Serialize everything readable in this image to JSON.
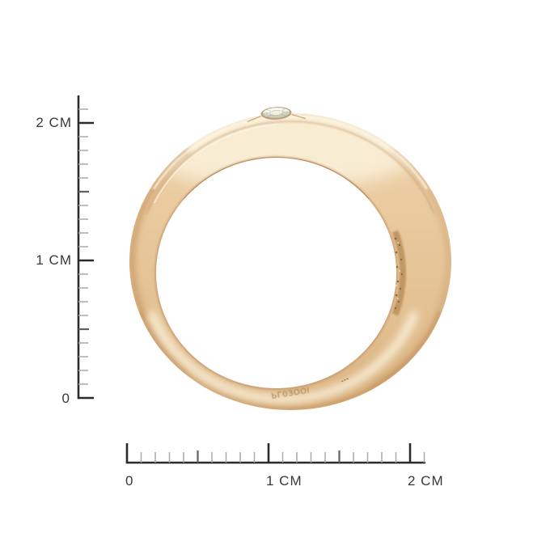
{
  "page": {
    "background_color": "#ffffff",
    "alt": "Side view photo of a polished gold band ring with a small flush-set diamond at the top, measured against centimeter rulers"
  },
  "rulers": {
    "unit": "CM",
    "vertical": {
      "labels": [
        {
          "text": "2 CM",
          "cm": 2
        },
        {
          "text": "1 CM",
          "cm": 1
        },
        {
          "text": "0",
          "cm": 0
        }
      ],
      "range_cm": [
        0,
        2.1
      ]
    },
    "horizontal": {
      "labels": [
        {
          "text": "0",
          "cm": 0
        },
        {
          "text": "1 CM",
          "cm": 1
        },
        {
          "text": "2 CM",
          "cm": 2
        }
      ],
      "range_cm": [
        0,
        2.1
      ]
    },
    "colors": {
      "major": "#2b2b2b",
      "medium": "#5f5f5f",
      "minor": "#a9a9a9",
      "label": "#383838"
    }
  },
  "ring": {
    "colors": {
      "gold_light": "#f0d5ae",
      "gold_base": "#e8c89b",
      "gold_mid": "#e2bf90",
      "gold_deep": "#d8b17e",
      "gold_shadow": "#c3915f",
      "band_highlight": "#f9efd8",
      "edge_highlight": "#fcf6e8",
      "channel_line": "#c9a173",
      "inner_rim": "#b28455",
      "inner_rim_soft": "#c2946a",
      "texture": "#b78c57",
      "texture_dot": "#7f5e35",
      "texture_sparkle": "#f7ecd2",
      "gem_white": "#ffffff",
      "gem_tint": "#d4d6bf",
      "gem_table": "#f0efe2",
      "gem_facet": "#adb096",
      "gem_shade": "#b8b29a",
      "gem_seat": "#b99264",
      "groove": "#c49c6e",
      "stamp": "#8a6630"
    },
    "hallmark_stamp": "ЬГ0ЗООІ",
    "hallmark_legible": false,
    "has_secondary_stamp": true
  }
}
